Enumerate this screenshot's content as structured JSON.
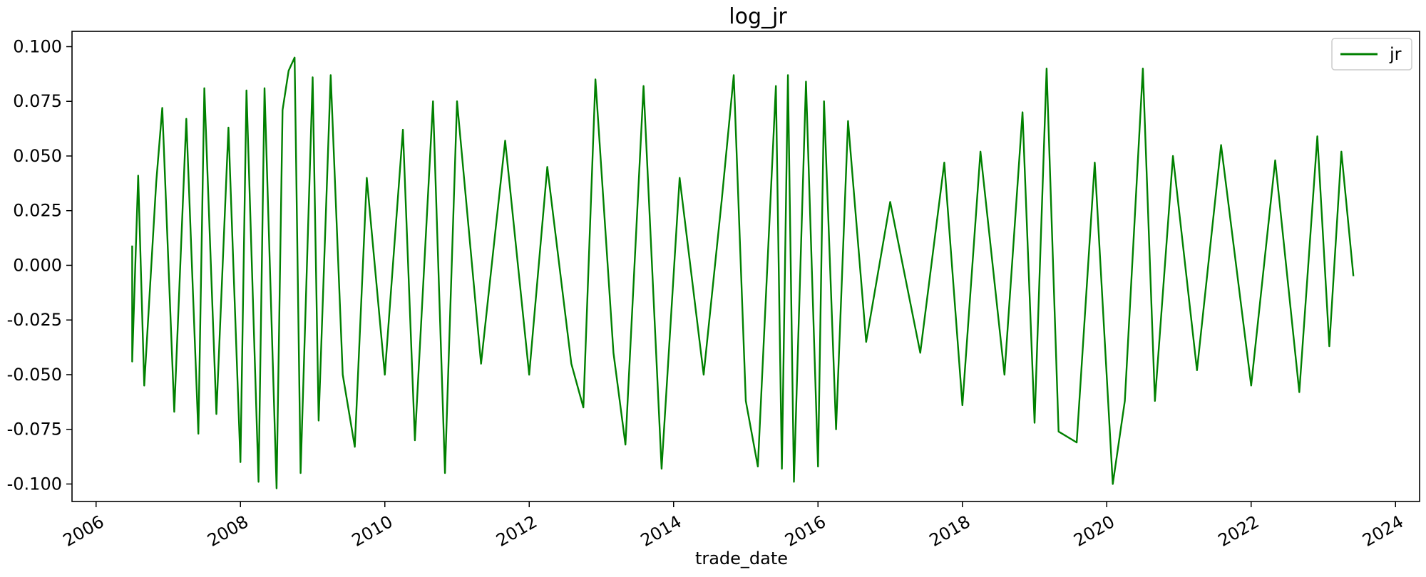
{
  "chart_data": {
    "type": "line",
    "title": "log_jr",
    "xlabel": "trade_date",
    "ylabel": "",
    "x_range": [
      "2006-06",
      "2023-06"
    ],
    "xlim": [
      "2005-09",
      "2024-05"
    ],
    "ylim": [
      -0.108,
      0.107
    ],
    "x_ticks": [
      "2006",
      "2008",
      "2010",
      "2012",
      "2014",
      "2016",
      "2018",
      "2020",
      "2022",
      "2024"
    ],
    "y_ticks": [
      "-0.100",
      "-0.075",
      "-0.050",
      "-0.025",
      "0.000",
      "0.025",
      "0.050",
      "0.075",
      "0.100"
    ],
    "legend": {
      "position": "top-right",
      "entries": [
        "jr"
      ]
    },
    "grid": false,
    "series": [
      {
        "name": "jr",
        "color": "#008000",
        "points": [
          {
            "x": "2006-07",
            "y": 0.009
          },
          {
            "x": "2006-07",
            "y": -0.044
          },
          {
            "x": "2006-08",
            "y": 0.041
          },
          {
            "x": "2006-09",
            "y": -0.055
          },
          {
            "x": "2006-11",
            "y": 0.038
          },
          {
            "x": "2006-12",
            "y": 0.072
          },
          {
            "x": "2007-02",
            "y": -0.067
          },
          {
            "x": "2007-04",
            "y": 0.067
          },
          {
            "x": "2007-06",
            "y": -0.077
          },
          {
            "x": "2007-07",
            "y": 0.081
          },
          {
            "x": "2007-09",
            "y": -0.068
          },
          {
            "x": "2007-11",
            "y": 0.063
          },
          {
            "x": "2008-01",
            "y": -0.09
          },
          {
            "x": "2008-02",
            "y": 0.08
          },
          {
            "x": "2008-04",
            "y": -0.099
          },
          {
            "x": "2008-05",
            "y": 0.081
          },
          {
            "x": "2008-07",
            "y": -0.102
          },
          {
            "x": "2008-08",
            "y": 0.071
          },
          {
            "x": "2008-09",
            "y": 0.089
          },
          {
            "x": "2008-10",
            "y": 0.095
          },
          {
            "x": "2008-11",
            "y": -0.095
          },
          {
            "x": "2009-01",
            "y": 0.086
          },
          {
            "x": "2009-02",
            "y": -0.071
          },
          {
            "x": "2009-04",
            "y": 0.087
          },
          {
            "x": "2009-06",
            "y": -0.05
          },
          {
            "x": "2009-08",
            "y": -0.083
          },
          {
            "x": "2009-10",
            "y": 0.04
          },
          {
            "x": "2010-01",
            "y": -0.05
          },
          {
            "x": "2010-04",
            "y": 0.062
          },
          {
            "x": "2010-06",
            "y": -0.08
          },
          {
            "x": "2010-09",
            "y": 0.075
          },
          {
            "x": "2010-11",
            "y": -0.095
          },
          {
            "x": "2011-01",
            "y": 0.075
          },
          {
            "x": "2011-05",
            "y": -0.045
          },
          {
            "x": "2011-09",
            "y": 0.057
          },
          {
            "x": "2012-01",
            "y": -0.05
          },
          {
            "x": "2012-04",
            "y": 0.045
          },
          {
            "x": "2012-08",
            "y": -0.045
          },
          {
            "x": "2012-10",
            "y": -0.065
          },
          {
            "x": "2012-12",
            "y": 0.085
          },
          {
            "x": "2013-03",
            "y": -0.04
          },
          {
            "x": "2013-05",
            "y": -0.082
          },
          {
            "x": "2013-08",
            "y": 0.082
          },
          {
            "x": "2013-11",
            "y": -0.093
          },
          {
            "x": "2014-02",
            "y": 0.04
          },
          {
            "x": "2014-06",
            "y": -0.05
          },
          {
            "x": "2014-09",
            "y": 0.03
          },
          {
            "x": "2014-11",
            "y": 0.087
          },
          {
            "x": "2015-01",
            "y": -0.062
          },
          {
            "x": "2015-03",
            "y": -0.092
          },
          {
            "x": "2015-06",
            "y": 0.082
          },
          {
            "x": "2015-07",
            "y": -0.093
          },
          {
            "x": "2015-08",
            "y": 0.087
          },
          {
            "x": "2015-09",
            "y": -0.099
          },
          {
            "x": "2015-11",
            "y": 0.084
          },
          {
            "x": "2016-01",
            "y": -0.092
          },
          {
            "x": "2016-02",
            "y": 0.075
          },
          {
            "x": "2016-04",
            "y": -0.075
          },
          {
            "x": "2016-06",
            "y": 0.066
          },
          {
            "x": "2016-09",
            "y": -0.035
          },
          {
            "x": "2017-01",
            "y": 0.029
          },
          {
            "x": "2017-06",
            "y": -0.04
          },
          {
            "x": "2017-10",
            "y": 0.047
          },
          {
            "x": "2018-01",
            "y": -0.064
          },
          {
            "x": "2018-04",
            "y": 0.052
          },
          {
            "x": "2018-08",
            "y": -0.05
          },
          {
            "x": "2018-11",
            "y": 0.07
          },
          {
            "x": "2019-01",
            "y": -0.072
          },
          {
            "x": "2019-03",
            "y": 0.09
          },
          {
            "x": "2019-05",
            "y": -0.076
          },
          {
            "x": "2019-08",
            "y": -0.081
          },
          {
            "x": "2019-11",
            "y": 0.047
          },
          {
            "x": "2020-02",
            "y": -0.1
          },
          {
            "x": "2020-04",
            "y": -0.062
          },
          {
            "x": "2020-07",
            "y": 0.09
          },
          {
            "x": "2020-09",
            "y": -0.062
          },
          {
            "x": "2020-12",
            "y": 0.05
          },
          {
            "x": "2021-04",
            "y": -0.048
          },
          {
            "x": "2021-08",
            "y": 0.055
          },
          {
            "x": "2022-01",
            "y": -0.055
          },
          {
            "x": "2022-05",
            "y": 0.048
          },
          {
            "x": "2022-09",
            "y": -0.058
          },
          {
            "x": "2022-12",
            "y": 0.059
          },
          {
            "x": "2023-02",
            "y": -0.037
          },
          {
            "x": "2023-04",
            "y": 0.052
          },
          {
            "x": "2023-06",
            "y": -0.005
          }
        ]
      }
    ]
  }
}
